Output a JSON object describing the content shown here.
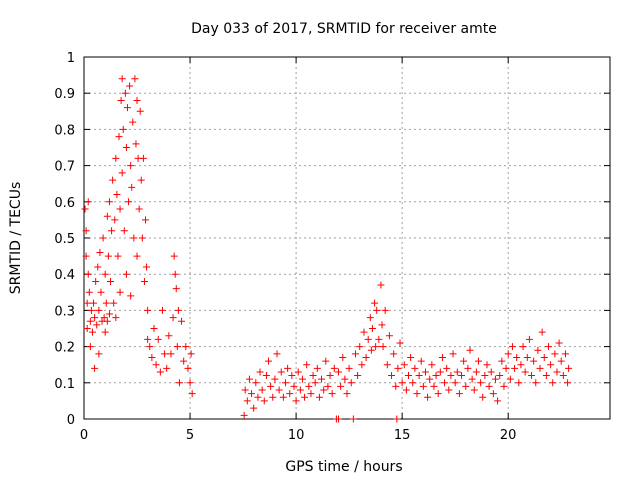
{
  "chart_data": {
    "type": "scatter",
    "title": "Day 033 of 2017, SRMTID for receiver amte",
    "xlabel": "GPS time / hours",
    "ylabel": "SRMTID / TECUs",
    "xlim": [
      0,
      24.8
    ],
    "ylim": [
      0,
      1
    ],
    "xticks": [
      0,
      5,
      10,
      15,
      20
    ],
    "yticks": [
      0,
      0.1,
      0.2,
      0.3,
      0.4,
      0.5,
      0.6,
      0.7,
      0.8,
      0.9,
      1
    ],
    "grid": true,
    "marker": "+",
    "color": "#ff0000",
    "series": [
      {
        "name": "amte",
        "points": [
          [
            0.05,
            0.58
          ],
          [
            0.1,
            0.52
          ],
          [
            0.1,
            0.45
          ],
          [
            0.15,
            0.32
          ],
          [
            0.15,
            0.25
          ],
          [
            0.2,
            0.6
          ],
          [
            0.2,
            0.4
          ],
          [
            0.25,
            0.35
          ],
          [
            0.3,
            0.27
          ],
          [
            0.3,
            0.2
          ],
          [
            0.35,
            0.3
          ],
          [
            0.4,
            0.24
          ],
          [
            0.45,
            0.32
          ],
          [
            0.5,
            0.28
          ],
          [
            0.5,
            0.14
          ],
          [
            0.55,
            0.38
          ],
          [
            0.6,
            0.26
          ],
          [
            0.65,
            0.42
          ],
          [
            0.7,
            0.3
          ],
          [
            0.7,
            0.18
          ],
          [
            0.75,
            0.46
          ],
          [
            0.8,
            0.35
          ],
          [
            0.85,
            0.27
          ],
          [
            0.9,
            0.5
          ],
          [
            0.95,
            0.28
          ],
          [
            1.0,
            0.4
          ],
          [
            1.0,
            0.24
          ],
          [
            1.05,
            0.32
          ],
          [
            1.1,
            0.56
          ],
          [
            1.1,
            0.27
          ],
          [
            1.15,
            0.45
          ],
          [
            1.2,
            0.6
          ],
          [
            1.2,
            0.29
          ],
          [
            1.25,
            0.38
          ],
          [
            1.3,
            0.52
          ],
          [
            1.35,
            0.66
          ],
          [
            1.4,
            0.32
          ],
          [
            1.45,
            0.55
          ],
          [
            1.5,
            0.72
          ],
          [
            1.5,
            0.28
          ],
          [
            1.55,
            0.62
          ],
          [
            1.6,
            0.45
          ],
          [
            1.65,
            0.78
          ],
          [
            1.7,
            0.58
          ],
          [
            1.7,
            0.35
          ],
          [
            1.75,
            0.88
          ],
          [
            1.8,
            0.94
          ],
          [
            1.8,
            0.68
          ],
          [
            1.85,
            0.8
          ],
          [
            1.9,
            0.52
          ],
          [
            1.95,
            0.9
          ],
          [
            2.0,
            0.75
          ],
          [
            2.0,
            0.4
          ],
          [
            2.05,
            0.86
          ],
          [
            2.1,
            0.6
          ],
          [
            2.15,
            0.92
          ],
          [
            2.2,
            0.7
          ],
          [
            2.2,
            0.34
          ],
          [
            2.25,
            0.64
          ],
          [
            2.3,
            0.82
          ],
          [
            2.35,
            0.5
          ],
          [
            2.4,
            0.94
          ],
          [
            2.45,
            0.76
          ],
          [
            2.5,
            0.88
          ],
          [
            2.5,
            0.45
          ],
          [
            2.55,
            0.72
          ],
          [
            2.6,
            0.58
          ],
          [
            2.65,
            0.85
          ],
          [
            2.7,
            0.66
          ],
          [
            2.75,
            0.5
          ],
          [
            2.8,
            0.72
          ],
          [
            2.85,
            0.38
          ],
          [
            2.9,
            0.55
          ],
          [
            2.95,
            0.42
          ],
          [
            3.0,
            0.3
          ],
          [
            3.0,
            0.22
          ],
          [
            3.1,
            0.2
          ],
          [
            3.2,
            0.17
          ],
          [
            3.3,
            0.25
          ],
          [
            3.4,
            0.15
          ],
          [
            3.5,
            0.22
          ],
          [
            3.6,
            0.13
          ],
          [
            3.7,
            0.3
          ],
          [
            3.8,
            0.18
          ],
          [
            3.9,
            0.14
          ],
          [
            4.0,
            0.23
          ],
          [
            4.1,
            0.18
          ],
          [
            4.2,
            0.28
          ],
          [
            4.25,
            0.45
          ],
          [
            4.3,
            0.4
          ],
          [
            4.35,
            0.36
          ],
          [
            4.4,
            0.2
          ],
          [
            4.45,
            0.3
          ],
          [
            4.5,
            0.1
          ],
          [
            4.6,
            0.27
          ],
          [
            4.7,
            0.16
          ],
          [
            4.8,
            0.2
          ],
          [
            4.9,
            0.14
          ],
          [
            5.0,
            0.1
          ],
          [
            5.05,
            0.18
          ],
          [
            5.1,
            0.07
          ],
          [
            7.55,
            0.01
          ],
          [
            7.6,
            0.08
          ],
          [
            7.7,
            0.05
          ],
          [
            7.8,
            0.11
          ],
          [
            7.9,
            0.07
          ],
          [
            8.0,
            0.03
          ],
          [
            8.1,
            0.1
          ],
          [
            8.2,
            0.06
          ],
          [
            8.3,
            0.13
          ],
          [
            8.4,
            0.08
          ],
          [
            8.5,
            0.05
          ],
          [
            8.6,
            0.12
          ],
          [
            8.7,
            0.16
          ],
          [
            8.8,
            0.09
          ],
          [
            8.9,
            0.06
          ],
          [
            9.0,
            0.11
          ],
          [
            9.1,
            0.18
          ],
          [
            9.2,
            0.08
          ],
          [
            9.3,
            0.13
          ],
          [
            9.4,
            0.06
          ],
          [
            9.5,
            0.1
          ],
          [
            9.6,
            0.14
          ],
          [
            9.7,
            0.07
          ],
          [
            9.8,
            0.12
          ],
          [
            9.9,
            0.09
          ],
          [
            10.0,
            0.05
          ],
          [
            10.1,
            0.13
          ],
          [
            10.2,
            0.08
          ],
          [
            10.3,
            0.11
          ],
          [
            10.4,
            0.06
          ],
          [
            10.5,
            0.15
          ],
          [
            10.6,
            0.09
          ],
          [
            10.7,
            0.07
          ],
          [
            10.8,
            0.12
          ],
          [
            10.9,
            0.1
          ],
          [
            11.0,
            0.14
          ],
          [
            11.1,
            0.06
          ],
          [
            11.2,
            0.11
          ],
          [
            11.3,
            0.08
          ],
          [
            11.4,
            0.16
          ],
          [
            11.5,
            0.09
          ],
          [
            11.6,
            0.12
          ],
          [
            11.7,
            0.07
          ],
          [
            11.8,
            0.14
          ],
          [
            11.9,
            0.0
          ],
          [
            12.0,
            0.0
          ],
          [
            12.0,
            0.13
          ],
          [
            12.1,
            0.09
          ],
          [
            12.2,
            0.17
          ],
          [
            12.3,
            0.11
          ],
          [
            12.4,
            0.07
          ],
          [
            12.5,
            0.14
          ],
          [
            12.6,
            0.1
          ],
          [
            12.7,
            0.0
          ],
          [
            12.8,
            0.18
          ],
          [
            12.9,
            0.12
          ],
          [
            13.0,
            0.2
          ],
          [
            13.1,
            0.15
          ],
          [
            13.2,
            0.24
          ],
          [
            13.3,
            0.17
          ],
          [
            13.4,
            0.22
          ],
          [
            13.5,
            0.28
          ],
          [
            13.55,
            0.19
          ],
          [
            13.6,
            0.25
          ],
          [
            13.7,
            0.32
          ],
          [
            13.75,
            0.2
          ],
          [
            13.8,
            0.3
          ],
          [
            13.9,
            0.22
          ],
          [
            14.0,
            0.37
          ],
          [
            14.05,
            0.26
          ],
          [
            14.1,
            0.2
          ],
          [
            14.2,
            0.3
          ],
          [
            14.3,
            0.15
          ],
          [
            14.4,
            0.23
          ],
          [
            14.5,
            0.12
          ],
          [
            14.6,
            0.18
          ],
          [
            14.7,
            0.09
          ],
          [
            14.75,
            0.0
          ],
          [
            14.8,
            0.14
          ],
          [
            14.9,
            0.21
          ],
          [
            15.0,
            0.1
          ],
          [
            15.1,
            0.15
          ],
          [
            15.2,
            0.08
          ],
          [
            15.3,
            0.12
          ],
          [
            15.4,
            0.17
          ],
          [
            15.5,
            0.1
          ],
          [
            15.6,
            0.14
          ],
          [
            15.7,
            0.07
          ],
          [
            15.8,
            0.12
          ],
          [
            15.9,
            0.16
          ],
          [
            16.0,
            0.09
          ],
          [
            16.1,
            0.13
          ],
          [
            16.2,
            0.06
          ],
          [
            16.3,
            0.11
          ],
          [
            16.4,
            0.15
          ],
          [
            16.5,
            0.09
          ],
          [
            16.6,
            0.12
          ],
          [
            16.7,
            0.07
          ],
          [
            16.8,
            0.13
          ],
          [
            16.9,
            0.17
          ],
          [
            17.0,
            0.1
          ],
          [
            17.1,
            0.14
          ],
          [
            17.2,
            0.08
          ],
          [
            17.3,
            0.12
          ],
          [
            17.4,
            0.18
          ],
          [
            17.5,
            0.1
          ],
          [
            17.6,
            0.13
          ],
          [
            17.7,
            0.07
          ],
          [
            17.8,
            0.12
          ],
          [
            17.9,
            0.16
          ],
          [
            18.0,
            0.09
          ],
          [
            18.1,
            0.14
          ],
          [
            18.2,
            0.19
          ],
          [
            18.3,
            0.11
          ],
          [
            18.4,
            0.08
          ],
          [
            18.5,
            0.13
          ],
          [
            18.6,
            0.16
          ],
          [
            18.7,
            0.1
          ],
          [
            18.8,
            0.06
          ],
          [
            18.9,
            0.12
          ],
          [
            19.0,
            0.15
          ],
          [
            19.1,
            0.09
          ],
          [
            19.2,
            0.13
          ],
          [
            19.3,
            0.07
          ],
          [
            19.4,
            0.11
          ],
          [
            19.5,
            0.05
          ],
          [
            19.6,
            0.12
          ],
          [
            19.7,
            0.16
          ],
          [
            19.8,
            0.09
          ],
          [
            19.9,
            0.14
          ],
          [
            20.0,
            0.18
          ],
          [
            20.1,
            0.11
          ],
          [
            20.2,
            0.2
          ],
          [
            20.3,
            0.14
          ],
          [
            20.4,
            0.17
          ],
          [
            20.5,
            0.1
          ],
          [
            20.6,
            0.15
          ],
          [
            20.7,
            0.2
          ],
          [
            20.8,
            0.13
          ],
          [
            20.9,
            0.17
          ],
          [
            21.0,
            0.22
          ],
          [
            21.1,
            0.12
          ],
          [
            21.2,
            0.16
          ],
          [
            21.3,
            0.1
          ],
          [
            21.4,
            0.19
          ],
          [
            21.5,
            0.14
          ],
          [
            21.6,
            0.24
          ],
          [
            21.7,
            0.17
          ],
          [
            21.8,
            0.12
          ],
          [
            21.9,
            0.2
          ],
          [
            22.0,
            0.15
          ],
          [
            22.1,
            0.1
          ],
          [
            22.2,
            0.18
          ],
          [
            22.3,
            0.13
          ],
          [
            22.4,
            0.21
          ],
          [
            22.5,
            0.16
          ],
          [
            22.6,
            0.12
          ],
          [
            22.7,
            0.18
          ],
          [
            22.8,
            0.1
          ],
          [
            22.85,
            0.14
          ]
        ]
      }
    ]
  }
}
